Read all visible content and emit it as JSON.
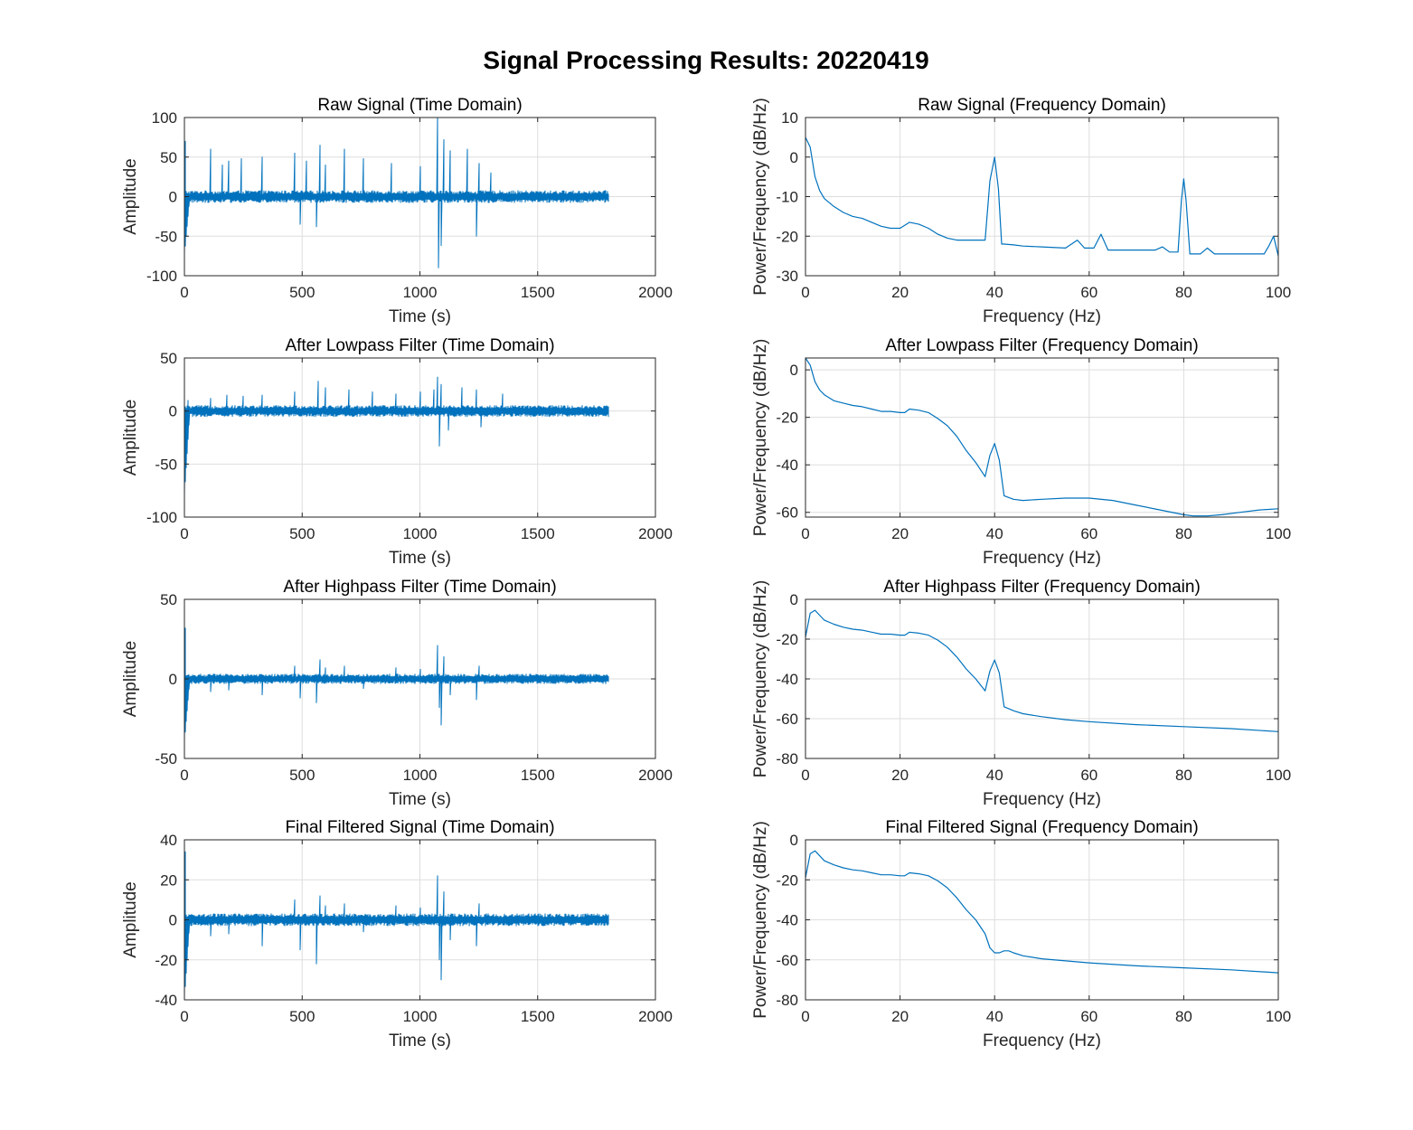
{
  "figure": {
    "title": "Signal Processing Results: 20220419"
  },
  "style": {
    "line_color": "#0072BD",
    "axis_color": "#262626",
    "grid_color": "#dedede",
    "background": "#ffffff"
  },
  "chart_data": [
    {
      "type": "line",
      "title": "Raw Signal (Time Domain)",
      "xlabel": "Time (s)",
      "ylabel": "Amplitude",
      "xlim": [
        0,
        2000
      ],
      "ylim": [
        -100,
        100
      ],
      "xticks": [
        0,
        500,
        1000,
        1500,
        2000
      ],
      "yticks": [
        -100,
        -50,
        0,
        50,
        100
      ],
      "grid": true,
      "series": [
        {
          "kind": "noise",
          "duration": 1800,
          "noise_amplitude": 5,
          "start_transient": -75,
          "spikes": [
            [
              5,
              70
            ],
            [
              110,
              60
            ],
            [
              160,
              40
            ],
            [
              190,
              45
            ],
            [
              240,
              48
            ],
            [
              330,
              50
            ],
            [
              470,
              55
            ],
            [
              490,
              -35
            ],
            [
              520,
              45
            ],
            [
              560,
              -38
            ],
            [
              575,
              65
            ],
            [
              600,
              40
            ],
            [
              680,
              60
            ],
            [
              760,
              48
            ],
            [
              880,
              42
            ],
            [
              1000,
              38
            ],
            [
              1075,
              102
            ],
            [
              1080,
              -90
            ],
            [
              1090,
              -62
            ],
            [
              1100,
              72
            ],
            [
              1130,
              58
            ],
            [
              1200,
              60
            ],
            [
              1240,
              -50
            ],
            [
              1250,
              42
            ],
            [
              1300,
              30
            ]
          ]
        }
      ]
    },
    {
      "type": "line",
      "title": "Raw Signal (Frequency Domain)",
      "xlabel": "Frequency (Hz)",
      "ylabel": "Power/Frequency (dB/Hz)",
      "xlim": [
        0,
        100
      ],
      "ylim": [
        -30,
        10
      ],
      "xticks": [
        0,
        20,
        40,
        60,
        80,
        100
      ],
      "yticks": [
        -30,
        -20,
        -10,
        0,
        10
      ],
      "grid": true,
      "series": [
        {
          "x": [
            0,
            1,
            2,
            3,
            4,
            6,
            8,
            10,
            12,
            14,
            16,
            18,
            20,
            22,
            24,
            26,
            28,
            30,
            32,
            34,
            36,
            38,
            39,
            40,
            40.8,
            41.5,
            42,
            44,
            46,
            50,
            55,
            57.5,
            59,
            61,
            62.5,
            64,
            66,
            70,
            74,
            75.5,
            77,
            78.8,
            79.5,
            80,
            80.5,
            81.3,
            82,
            83.5,
            85,
            86.5,
            90,
            95,
            97,
            98,
            99,
            100
          ],
          "y": [
            5,
            2.5,
            -5,
            -8.5,
            -10.5,
            -12.5,
            -14,
            -15,
            -15.5,
            -16.5,
            -17.5,
            -18,
            -18,
            -16.5,
            -17,
            -18,
            -19.5,
            -20.5,
            -21,
            -21,
            -21,
            -21,
            -6,
            0,
            -8,
            -22,
            -22,
            -22.2,
            -22.5,
            -22.7,
            -23,
            -21,
            -23,
            -23,
            -19.5,
            -23.5,
            -23.5,
            -23.5,
            -23.5,
            -22.7,
            -24,
            -24,
            -11,
            -5.5,
            -11,
            -24.5,
            -24.5,
            -24.5,
            -23,
            -24.5,
            -24.5,
            -24.5,
            -24.5,
            -22.5,
            -20,
            -25
          ]
        }
      ]
    },
    {
      "type": "line",
      "title": "After Lowpass Filter (Time Domain)",
      "xlabel": "Time (s)",
      "ylabel": "Amplitude",
      "xlim": [
        0,
        2000
      ],
      "ylim": [
        -100,
        50
      ],
      "xticks": [
        0,
        500,
        1000,
        1500,
        2000
      ],
      "yticks": [
        -100,
        -50,
        0,
        50
      ],
      "grid": true,
      "series": [
        {
          "kind": "noise",
          "duration": 1800,
          "noise_amplitude": 3.5,
          "start_transient": -80,
          "spikes": [
            [
              15,
              10
            ],
            [
              110,
              12
            ],
            [
              180,
              15
            ],
            [
              250,
              14
            ],
            [
              330,
              15
            ],
            [
              470,
              18
            ],
            [
              570,
              28
            ],
            [
              600,
              22
            ],
            [
              700,
              20
            ],
            [
              800,
              18
            ],
            [
              900,
              16
            ],
            [
              1000,
              18
            ],
            [
              1060,
              20
            ],
            [
              1075,
              32
            ],
            [
              1082,
              -33
            ],
            [
              1090,
              25
            ],
            [
              1120,
              -18
            ],
            [
              1180,
              22
            ],
            [
              1240,
              20
            ],
            [
              1260,
              -15
            ],
            [
              1350,
              16
            ]
          ]
        }
      ]
    },
    {
      "type": "line",
      "title": "After Lowpass Filter (Frequency Domain)",
      "xlabel": "Frequency (Hz)",
      "ylabel": "Power/Frequency (dB/Hz)",
      "xlim": [
        0,
        100
      ],
      "ylim": [
        -62,
        5
      ],
      "xticks": [
        0,
        20,
        40,
        60,
        80,
        100
      ],
      "yticks": [
        -60,
        -40,
        -20,
        0
      ],
      "grid": true,
      "series": [
        {
          "x": [
            0,
            1,
            2,
            3,
            4,
            6,
            8,
            10,
            12,
            14,
            16,
            18,
            20,
            21,
            22,
            24,
            26,
            28,
            30,
            32,
            34,
            36,
            38,
            39,
            40,
            41,
            42,
            44,
            46,
            50,
            55,
            60,
            65,
            70,
            75,
            80,
            82,
            85,
            88,
            92,
            96,
            100
          ],
          "y": [
            5,
            2,
            -5,
            -8.5,
            -10.5,
            -13,
            -14,
            -15,
            -15.5,
            -16.5,
            -17.5,
            -17.5,
            -18,
            -18,
            -16.5,
            -17,
            -18,
            -20.5,
            -23.5,
            -28,
            -34,
            -39,
            -45,
            -36,
            -31,
            -38,
            -53,
            -54.5,
            -55,
            -54.5,
            -54,
            -54,
            -55,
            -57,
            -59,
            -61,
            -61.5,
            -61.5,
            -61,
            -60,
            -59,
            -58.5
          ]
        }
      ]
    },
    {
      "type": "line",
      "title": "After Highpass Filter (Time Domain)",
      "xlabel": "Time (s)",
      "ylabel": "Amplitude",
      "xlim": [
        0,
        2000
      ],
      "ylim": [
        -50,
        50
      ],
      "xticks": [
        0,
        500,
        1000,
        1500,
        2000
      ],
      "yticks": [
        -50,
        0,
        50
      ],
      "grid": true,
      "series": [
        {
          "kind": "noise",
          "duration": 1800,
          "noise_amplitude": 2,
          "start_transient": -40,
          "spikes": [
            [
              2,
              32
            ],
            [
              110,
              -8
            ],
            [
              190,
              -7
            ],
            [
              330,
              -10
            ],
            [
              470,
              8
            ],
            [
              490,
              -12
            ],
            [
              560,
              -15
            ],
            [
              575,
              12
            ],
            [
              600,
              7
            ],
            [
              680,
              8
            ],
            [
              760,
              -6
            ],
            [
              900,
              7
            ],
            [
              1000,
              6
            ],
            [
              1075,
              21
            ],
            [
              1082,
              -18
            ],
            [
              1090,
              -29
            ],
            [
              1100,
              14
            ],
            [
              1130,
              -10
            ],
            [
              1240,
              -13
            ],
            [
              1250,
              8
            ]
          ]
        }
      ]
    },
    {
      "type": "line",
      "title": "After Highpass Filter (Frequency Domain)",
      "xlabel": "Frequency (Hz)",
      "ylabel": "Power/Frequency (dB/Hz)",
      "xlim": [
        0,
        100
      ],
      "ylim": [
        -80,
        0
      ],
      "xticks": [
        0,
        20,
        40,
        60,
        80,
        100
      ],
      "yticks": [
        -80,
        -60,
        -40,
        -20,
        0
      ],
      "grid": true,
      "series": [
        {
          "x": [
            0,
            1,
            2,
            3,
            4,
            6,
            8,
            10,
            12,
            14,
            16,
            18,
            20,
            21,
            22,
            24,
            26,
            28,
            30,
            32,
            34,
            36,
            38,
            39,
            40,
            41,
            42,
            44,
            46,
            50,
            55,
            60,
            70,
            80,
            90,
            100
          ],
          "y": [
            -19,
            -7,
            -5.5,
            -8,
            -10.5,
            -12.5,
            -14,
            -15,
            -15.5,
            -16.5,
            -17.5,
            -17.5,
            -18,
            -18,
            -16.5,
            -17,
            -18,
            -20.5,
            -24,
            -29,
            -35,
            -40,
            -46,
            -36,
            -30.5,
            -37,
            -54,
            -56,
            -57.5,
            -59,
            -60.5,
            -61.5,
            -63,
            -64,
            -65,
            -66.5
          ]
        }
      ]
    },
    {
      "type": "line",
      "title": "Final Filtered Signal (Time Domain)",
      "xlabel": "Time (s)",
      "ylabel": "Amplitude",
      "xlim": [
        0,
        2000
      ],
      "ylim": [
        -40,
        40
      ],
      "xticks": [
        0,
        500,
        1000,
        1500,
        2000
      ],
      "yticks": [
        -40,
        -20,
        0,
        20,
        40
      ],
      "grid": true,
      "series": [
        {
          "kind": "noise",
          "duration": 1800,
          "noise_amplitude": 2,
          "start_transient": -40,
          "spikes": [
            [
              2,
              34
            ],
            [
              110,
              -8
            ],
            [
              190,
              -7
            ],
            [
              330,
              -13
            ],
            [
              470,
              10
            ],
            [
              490,
              -15
            ],
            [
              560,
              -22
            ],
            [
              575,
              12
            ],
            [
              600,
              7
            ],
            [
              680,
              8
            ],
            [
              760,
              -6
            ],
            [
              900,
              7
            ],
            [
              1000,
              6
            ],
            [
              1075,
              22
            ],
            [
              1082,
              -20
            ],
            [
              1090,
              -30
            ],
            [
              1100,
              14
            ],
            [
              1130,
              -10
            ],
            [
              1240,
              -13
            ],
            [
              1250,
              8
            ]
          ]
        }
      ]
    },
    {
      "type": "line",
      "title": "Final Filtered Signal (Frequency Domain)",
      "xlabel": "Frequency (Hz)",
      "ylabel": "Power/Frequency (dB/Hz)",
      "xlim": [
        0,
        100
      ],
      "ylim": [
        -80,
        0
      ],
      "xticks": [
        0,
        20,
        40,
        60,
        80,
        100
      ],
      "yticks": [
        -80,
        -60,
        -40,
        -20,
        0
      ],
      "grid": true,
      "series": [
        {
          "x": [
            0,
            1,
            2,
            3,
            4,
            6,
            8,
            10,
            12,
            14,
            16,
            18,
            20,
            21,
            22,
            24,
            26,
            28,
            30,
            32,
            34,
            36,
            38,
            39,
            40,
            41,
            42,
            43,
            44,
            46,
            50,
            55,
            60,
            70,
            80,
            90,
            100
          ],
          "y": [
            -19,
            -7,
            -5.5,
            -8,
            -10.5,
            -12.5,
            -14,
            -15,
            -15.5,
            -16.5,
            -17.5,
            -17.5,
            -18,
            -18,
            -16.5,
            -17,
            -18,
            -20.5,
            -24,
            -29,
            -35,
            -40,
            -47,
            -54,
            -56.5,
            -56.5,
            -55.5,
            -55.5,
            -56.5,
            -58,
            -59.5,
            -60.5,
            -61.5,
            -63,
            -64,
            -65,
            -66.5
          ]
        }
      ]
    }
  ]
}
